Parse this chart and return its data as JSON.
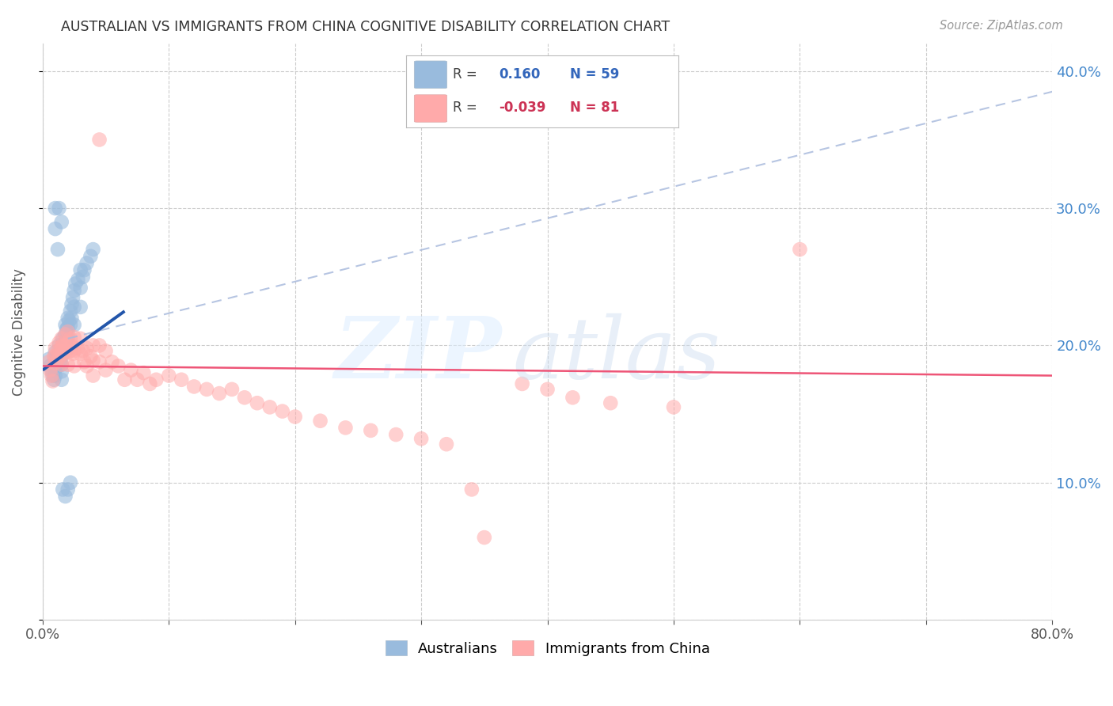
{
  "title": "AUSTRALIAN VS IMMIGRANTS FROM CHINA COGNITIVE DISABILITY CORRELATION CHART",
  "source": "Source: ZipAtlas.com",
  "ylabel": "Cognitive Disability",
  "xlim": [
    0,
    0.8
  ],
  "ylim": [
    0,
    0.42
  ],
  "blue_color": "#99BBDD",
  "pink_color": "#FFAAAA",
  "blue_line_color": "#2255AA",
  "pink_line_color": "#EE5577",
  "dash_color": "#AABBDD",
  "R_blue": 0.16,
  "N_blue": 59,
  "R_pink": -0.039,
  "N_pink": 81,
  "blue_scatter_x": [
    0.005,
    0.006,
    0.007,
    0.008,
    0.009,
    0.01,
    0.01,
    0.01,
    0.01,
    0.01,
    0.012,
    0.012,
    0.013,
    0.013,
    0.014,
    0.015,
    0.015,
    0.015,
    0.015,
    0.015,
    0.016,
    0.017,
    0.018,
    0.018,
    0.018,
    0.019,
    0.019,
    0.02,
    0.02,
    0.02,
    0.02,
    0.021,
    0.022,
    0.022,
    0.023,
    0.023,
    0.024,
    0.025,
    0.025,
    0.025,
    0.026,
    0.028,
    0.03,
    0.03,
    0.03,
    0.032,
    0.033,
    0.035,
    0.038,
    0.04,
    0.01,
    0.01,
    0.012,
    0.013,
    0.015,
    0.016,
    0.018,
    0.02,
    0.022
  ],
  "blue_scatter_y": [
    0.19,
    0.185,
    0.182,
    0.178,
    0.175,
    0.195,
    0.19,
    0.186,
    0.183,
    0.178,
    0.192,
    0.185,
    0.2,
    0.193,
    0.188,
    0.198,
    0.192,
    0.186,
    0.181,
    0.175,
    0.205,
    0.198,
    0.215,
    0.208,
    0.2,
    0.212,
    0.205,
    0.22,
    0.213,
    0.206,
    0.198,
    0.218,
    0.225,
    0.215,
    0.23,
    0.22,
    0.235,
    0.24,
    0.228,
    0.215,
    0.245,
    0.248,
    0.255,
    0.242,
    0.228,
    0.25,
    0.255,
    0.26,
    0.265,
    0.27,
    0.3,
    0.285,
    0.27,
    0.3,
    0.29,
    0.095,
    0.09,
    0.095,
    0.1
  ],
  "pink_scatter_x": [
    0.005,
    0.006,
    0.007,
    0.008,
    0.009,
    0.01,
    0.01,
    0.01,
    0.012,
    0.012,
    0.013,
    0.014,
    0.015,
    0.015,
    0.015,
    0.015,
    0.016,
    0.017,
    0.018,
    0.018,
    0.019,
    0.02,
    0.02,
    0.02,
    0.02,
    0.022,
    0.022,
    0.023,
    0.024,
    0.025,
    0.025,
    0.025,
    0.028,
    0.03,
    0.03,
    0.032,
    0.033,
    0.035,
    0.035,
    0.038,
    0.04,
    0.04,
    0.04,
    0.045,
    0.045,
    0.05,
    0.05,
    0.055,
    0.06,
    0.065,
    0.07,
    0.075,
    0.08,
    0.085,
    0.09,
    0.1,
    0.11,
    0.12,
    0.13,
    0.14,
    0.15,
    0.16,
    0.17,
    0.18,
    0.19,
    0.2,
    0.22,
    0.24,
    0.26,
    0.28,
    0.3,
    0.32,
    0.34,
    0.38,
    0.4,
    0.42,
    0.45,
    0.5,
    0.6,
    0.045,
    0.35
  ],
  "pink_scatter_y": [
    0.188,
    0.182,
    0.178,
    0.174,
    0.192,
    0.198,
    0.192,
    0.187,
    0.196,
    0.189,
    0.202,
    0.196,
    0.205,
    0.199,
    0.193,
    0.186,
    0.2,
    0.195,
    0.208,
    0.2,
    0.196,
    0.21,
    0.202,
    0.195,
    0.186,
    0.205,
    0.196,
    0.2,
    0.194,
    0.206,
    0.196,
    0.185,
    0.198,
    0.205,
    0.194,
    0.196,
    0.188,
    0.198,
    0.185,
    0.192,
    0.2,
    0.189,
    0.178,
    0.2,
    0.188,
    0.196,
    0.182,
    0.188,
    0.185,
    0.175,
    0.182,
    0.175,
    0.18,
    0.172,
    0.175,
    0.178,
    0.175,
    0.17,
    0.168,
    0.165,
    0.168,
    0.162,
    0.158,
    0.155,
    0.152,
    0.148,
    0.145,
    0.14,
    0.138,
    0.135,
    0.132,
    0.128,
    0.095,
    0.172,
    0.168,
    0.162,
    0.158,
    0.155,
    0.27,
    0.35,
    0.06
  ]
}
